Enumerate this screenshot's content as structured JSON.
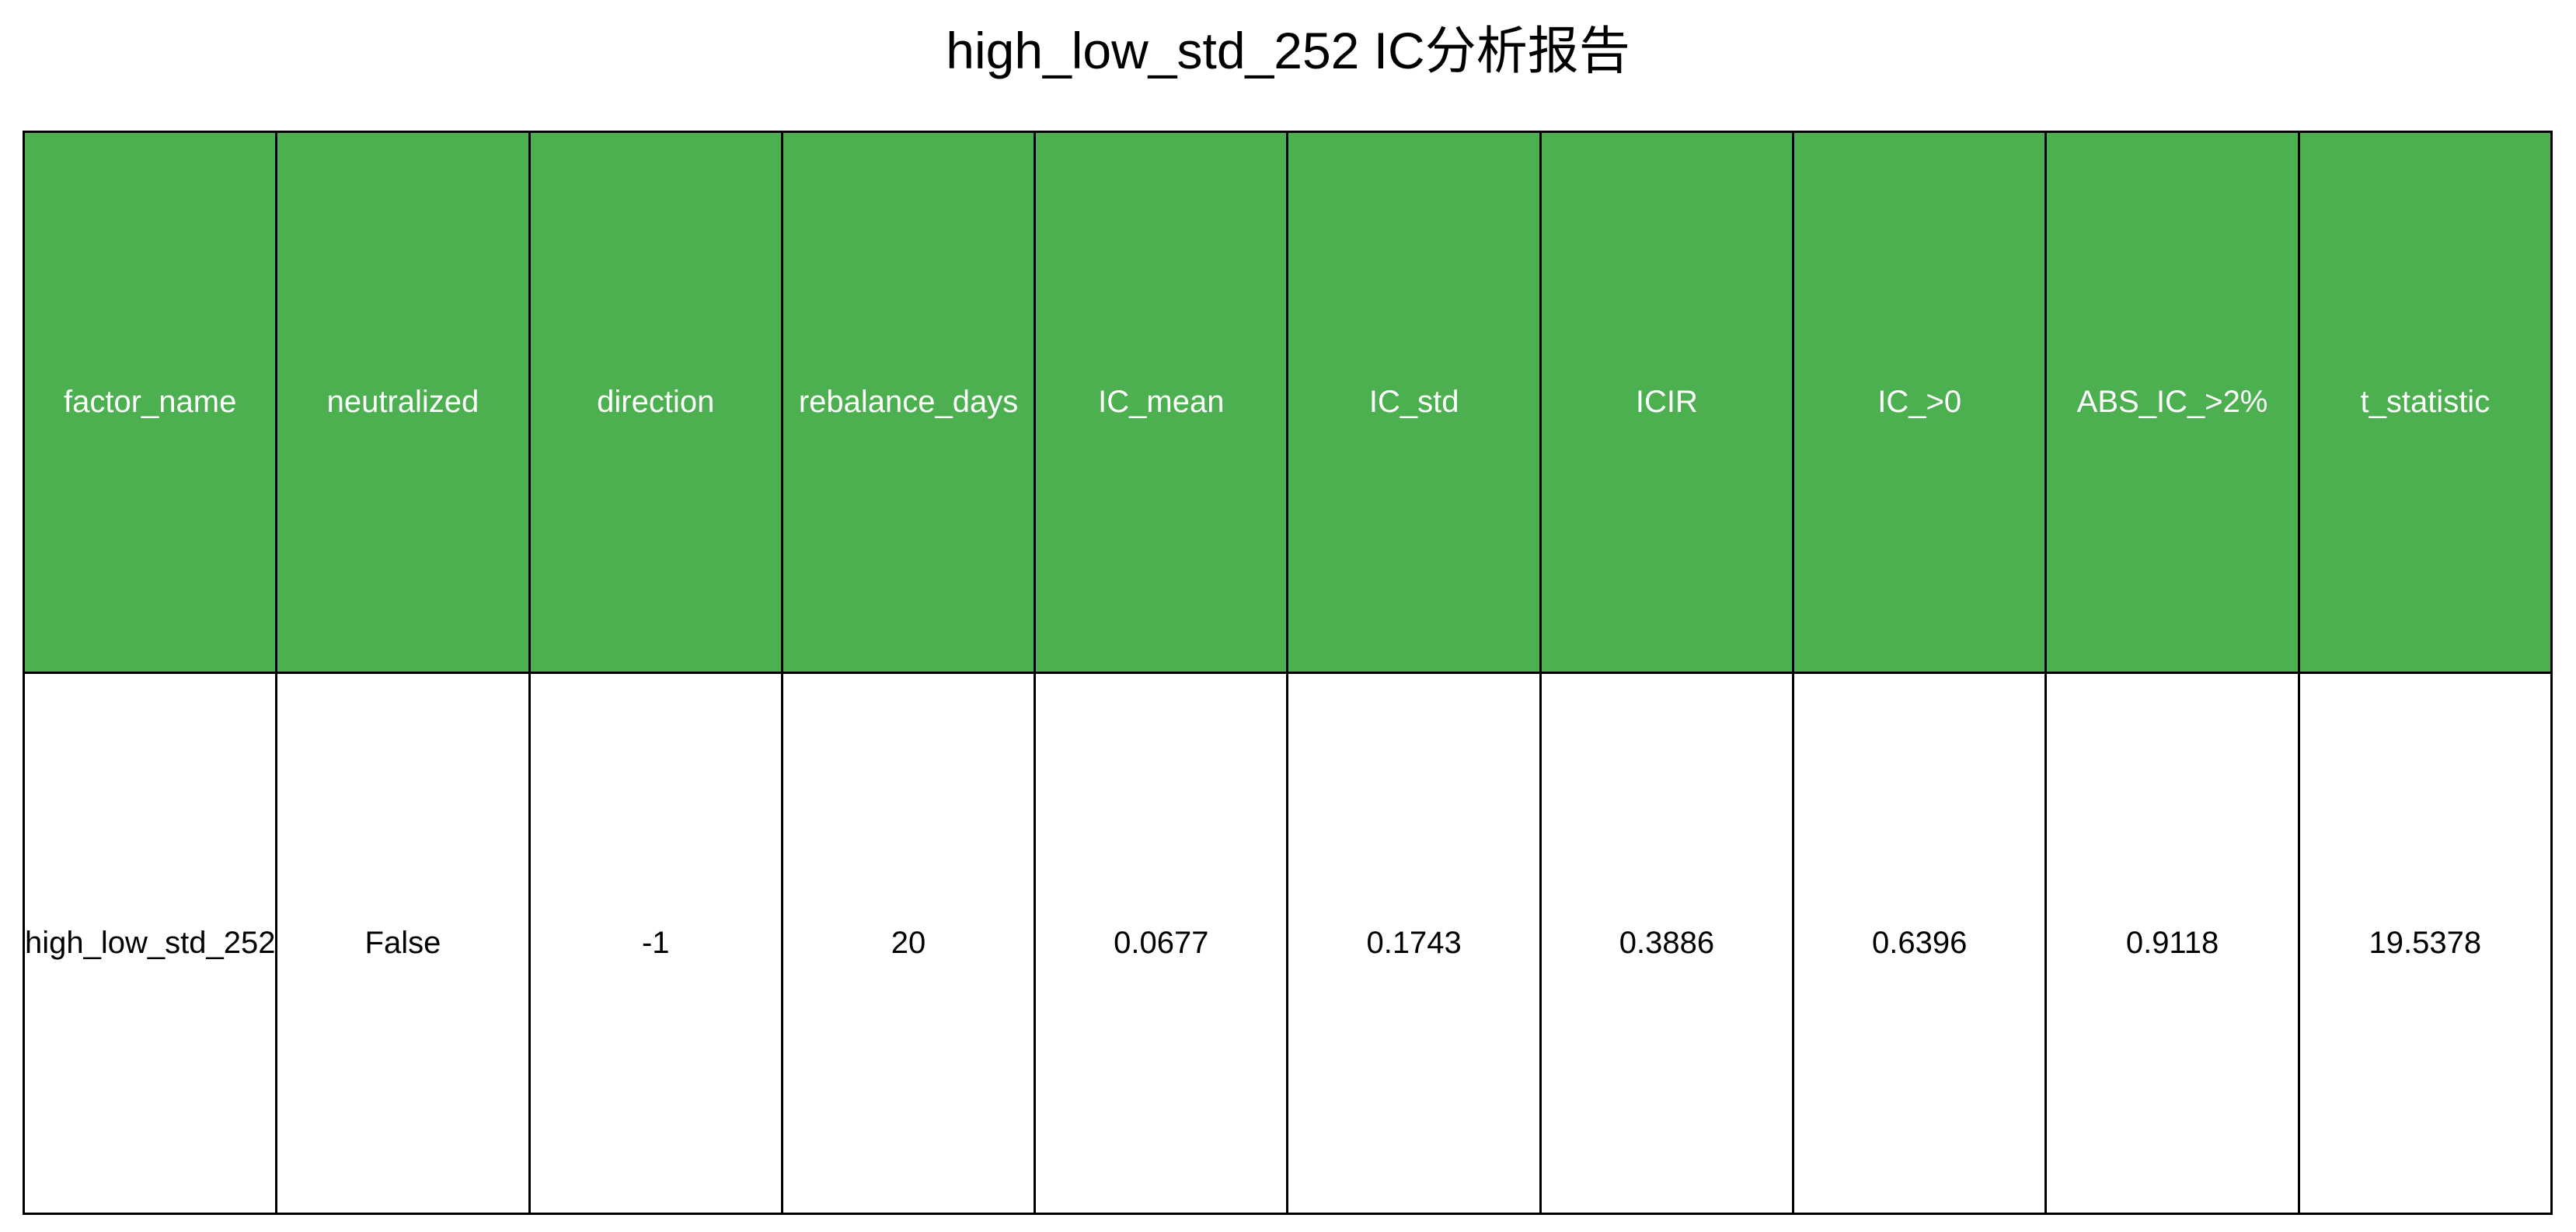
{
  "chart_data": {
    "type": "table",
    "title": "high_low_std_252 IC分析报告",
    "columns": [
      "factor_name",
      "neutralized",
      "direction",
      "rebalance_days",
      "IC_mean",
      "IC_std",
      "ICIR",
      "IC_>0",
      "ABS_IC_>2%",
      "t_statistic"
    ],
    "rows": [
      [
        "high_low_std_252",
        "False",
        "-1",
        "20",
        "0.0677",
        "0.1743",
        "0.3886",
        "0.6396",
        "0.9118",
        "19.5378"
      ]
    ],
    "colors": {
      "header_background": "#4caf50",
      "header_text": "#ffffff",
      "cell_background": "#ffffff",
      "cell_text": "#000000",
      "border": "#000000"
    }
  }
}
